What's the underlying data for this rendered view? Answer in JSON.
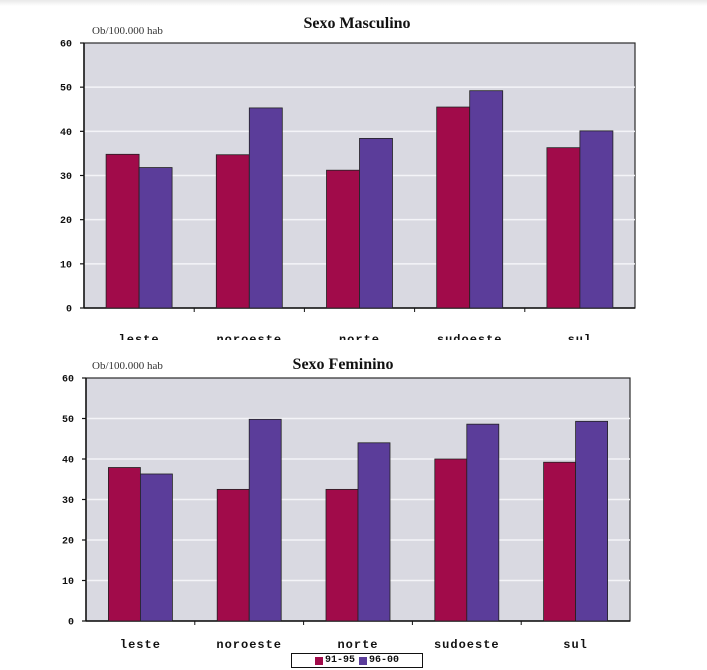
{
  "chart_data": [
    {
      "type": "bar",
      "title": "Sexo Masculino",
      "ylabel": "Ob/100.000 hab",
      "xlabel": "",
      "ylim": [
        0,
        60
      ],
      "yticks": [
        0,
        10,
        20,
        30,
        40,
        50,
        60
      ],
      "grid": true,
      "categories": [
        "leste",
        "noroeste",
        "norte",
        "sudoeste",
        "sul"
      ],
      "series": [
        {
          "name": "91-95",
          "color": "#a10b4a",
          "values": [
            34.8,
            34.7,
            31.2,
            45.5,
            36.3
          ]
        },
        {
          "name": "96-00",
          "color": "#5b3d9a",
          "values": [
            31.8,
            45.3,
            38.4,
            49.2,
            40.1
          ]
        }
      ]
    },
    {
      "type": "bar",
      "title": "Sexo Feminino",
      "ylabel": "Ob/100.000 hab",
      "xlabel": "",
      "ylim": [
        0,
        60
      ],
      "yticks": [
        0,
        10,
        20,
        30,
        40,
        50,
        60
      ],
      "grid": true,
      "categories": [
        "leste",
        "noroeste",
        "norte",
        "sudoeste",
        "sul"
      ],
      "series": [
        {
          "name": "91-95",
          "color": "#a10b4a",
          "values": [
            37.9,
            32.5,
            32.5,
            40.0,
            39.2
          ]
        },
        {
          "name": "96-00",
          "color": "#5b3d9a",
          "values": [
            36.3,
            49.8,
            44.0,
            48.6,
            49.3
          ]
        }
      ]
    }
  ],
  "legend": {
    "placement": "bottom-center",
    "items": [
      {
        "label": "91-95",
        "color": "#a10b4a"
      },
      {
        "label": "96-00",
        "color": "#5b3d9a"
      }
    ]
  }
}
